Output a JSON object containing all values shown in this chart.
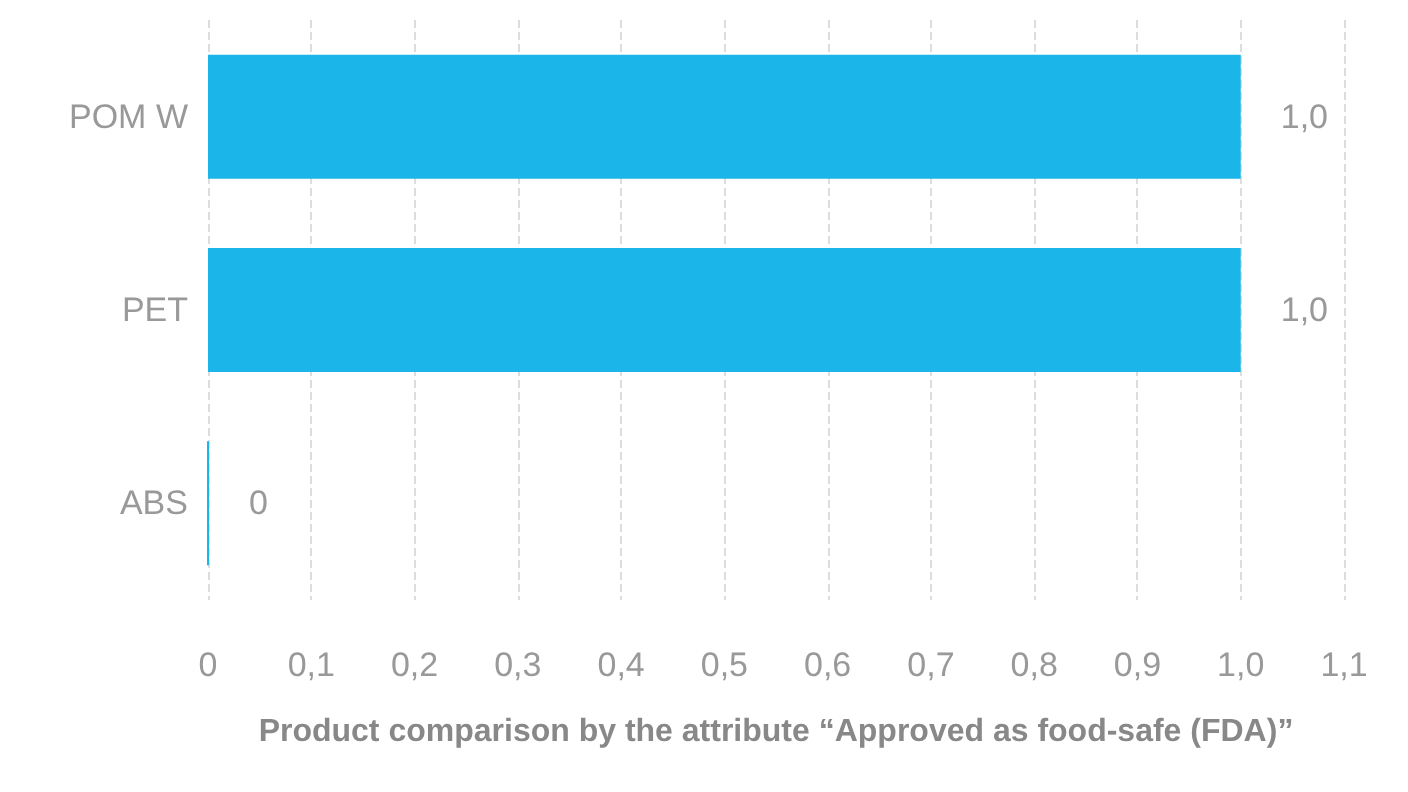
{
  "chart_data": {
    "type": "bar",
    "orientation": "horizontal",
    "xlabel": "Product comparison by the attribute “Approved as food-safe (FDA)”",
    "categories": [
      "POM W",
      "PET",
      "ABS"
    ],
    "values": [
      1.0,
      1.0,
      0
    ],
    "value_labels": [
      "1,0",
      "1,0",
      "0"
    ],
    "color": "#1cb5ea",
    "xlim": [
      0,
      1.1
    ],
    "xticks": [
      0,
      {
        "value": 0.1,
        "label": "0,1"
      },
      {
        "value": 0.2,
        "label": "0,2"
      },
      {
        "value": 0.3,
        "label": "0,3"
      },
      {
        "value": 0.4,
        "label": "0,4"
      },
      {
        "value": 0.5,
        "label": "0,5"
      },
      {
        "value": 0.6,
        "label": "0,6"
      },
      {
        "value": 0.7,
        "label": "0,7"
      },
      {
        "value": 0.8,
        "label": "0,8"
      },
      {
        "value": 0.9,
        "label": "0,9"
      },
      {
        "value": 1.0,
        "label": "1,0"
      },
      {
        "value": 1.1,
        "label": "1,1"
      }
    ],
    "grid": "x"
  }
}
